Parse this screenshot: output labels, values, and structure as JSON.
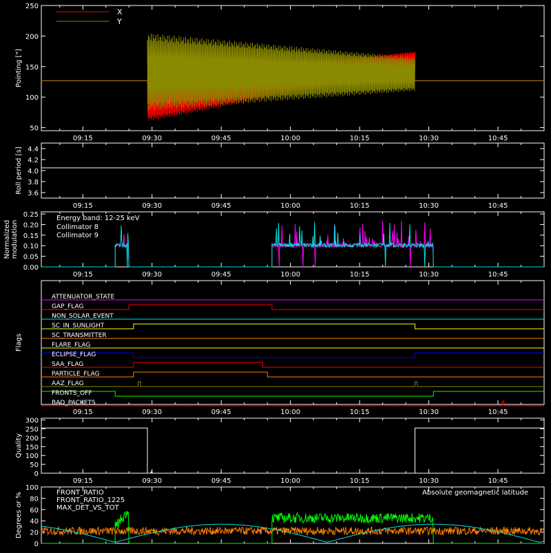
{
  "colors": {
    "background": "#000000",
    "axes": "#ffffff",
    "pointing_x": "#ff0000",
    "pointing_y": "#8a8a00",
    "collimator_8": "#00e5e5",
    "collimator_9": "#ff00ff",
    "front_ratio": "#ffff00",
    "front_ratio_1225": "#00ff00",
    "max_det_vs_tot": "#ff8000",
    "geomag": "#00e5e5"
  },
  "time_ticks": [
    "09:15",
    "09:30",
    "09:45",
    "10:00",
    "10:15",
    "10:30",
    "10:45"
  ],
  "chart_data": [
    {
      "type": "line",
      "id": "pointing",
      "ylabel": "Pointing [\"]",
      "ylim": [
        45,
        250
      ],
      "yticks": [
        "50",
        "100",
        "150",
        "200",
        "250"
      ],
      "series": [
        {
          "name": "X",
          "color": "#ff0000",
          "segments": [
            {
              "t": [
                "09:06",
                "09:29"
              ],
              "level": 127
            },
            {
              "t": [
                "09:29",
                "10:27"
              ],
              "envelope_low": [
                60,
                145
              ],
              "envelope_high": [
                135,
                175
              ]
            },
            {
              "t": [
                "10:27",
                "10:55"
              ],
              "level": 127
            }
          ]
        },
        {
          "name": "Y",
          "color": "#8a8a00",
          "segments": [
            {
              "t": [
                "09:06",
                "09:29"
              ],
              "level": 127
            },
            {
              "t": [
                "09:29",
                "10:27"
              ],
              "envelope_low": [
                78,
                110
              ],
              "envelope_high": [
                205,
                165
              ]
            },
            {
              "t": [
                "10:27",
                "10:55"
              ],
              "level": 127
            }
          ]
        }
      ]
    },
    {
      "type": "line",
      "id": "roll",
      "ylabel": "Roll period [s]",
      "ylim": [
        3.5,
        4.5
      ],
      "yticks": [
        "3.6",
        "3.8",
        "4.0",
        "4.2",
        "4.4"
      ],
      "series": [
        {
          "name": "",
          "color": "#ffffff",
          "level": 4.05
        }
      ]
    },
    {
      "type": "line",
      "id": "modulation",
      "ylabel": "Normalized modulation",
      "ylim": [
        0,
        0.26
      ],
      "yticks": [
        "0.00",
        "0.05",
        "0.10",
        "0.15",
        "0.20",
        "0.25"
      ],
      "annotation": "Energy band: 12-25 keV",
      "series": [
        {
          "name": "Collimator 8",
          "color": "#00e5e5",
          "active": [
            [
              "09:22",
              "09:25"
            ],
            [
              "09:56",
              "10:31"
            ]
          ],
          "baseline": 0.1
        },
        {
          "name": "Collimator 9",
          "color": "#ff00ff",
          "active": [
            [
              "09:22",
              "09:25"
            ],
            [
              "09:56",
              "10:31"
            ]
          ],
          "baseline": 0.1
        }
      ]
    },
    {
      "type": "line",
      "id": "flags",
      "ylabel": "Flags",
      "series": [
        {
          "name": "ATTENUATOR_STATE",
          "color": "#ff00ff",
          "transitions": [
            [
              "09:06",
              0
            ]
          ]
        },
        {
          "name": "GAP_FLAG",
          "color": "#ff0000",
          "transitions": [
            [
              "09:06",
              0
            ],
            [
              "09:25",
              1
            ],
            [
              "09:56",
              0
            ]
          ]
        },
        {
          "name": "NON_SOLAR_EVENT",
          "color": "#00e5e5",
          "transitions": [
            [
              "09:06",
              0
            ]
          ]
        },
        {
          "name": "SC_IN_SUNLIGHT",
          "color": "#ffff00",
          "transitions": [
            [
              "09:06",
              0
            ],
            [
              "09:26",
              1
            ],
            [
              "10:27",
              0
            ]
          ]
        },
        {
          "name": "SC_TRANSMITTER",
          "color": "#ff8000",
          "transitions": [
            [
              "09:06",
              0
            ]
          ]
        },
        {
          "name": "FLARE_FLAG",
          "color": "#ffff00",
          "transitions": [
            [
              "09:06",
              0
            ]
          ]
        },
        {
          "name": "ECLIPSE_FLAG",
          "color": "#0000ff",
          "transitions": [
            [
              "09:06",
              1
            ],
            [
              "09:26",
              0
            ],
            [
              "10:27",
              1
            ]
          ]
        },
        {
          "name": "SAA_FLAG",
          "color": "#ff0000",
          "transitions": [
            [
              "09:06",
              0
            ],
            [
              "09:26",
              1
            ],
            [
              "09:54",
              0
            ]
          ]
        },
        {
          "name": "PARTICLE_FLAG",
          "color": "#ff8000",
          "transitions": [
            [
              "09:06",
              0
            ],
            [
              "09:26",
              1
            ],
            [
              "09:55",
              0
            ]
          ]
        },
        {
          "name": "AAZ_FLAG",
          "color": "#8a8a00",
          "transitions": [
            [
              "09:06",
              0
            ],
            [
              "09:27",
              1
            ],
            [
              "09:27.5",
              0
            ],
            [
              "10:27",
              1
            ],
            [
              "10:27.5",
              0
            ]
          ]
        },
        {
          "name": "FRONTS_OFF",
          "color": "#00ff00",
          "transitions": [
            [
              "09:06",
              1
            ],
            [
              "09:22",
              0
            ],
            [
              "10:31",
              1
            ]
          ]
        },
        {
          "name": "BAD_PACKETS",
          "color": "#ff0000",
          "transitions": [
            [
              "09:06",
              0
            ],
            [
              "10:46",
              1
            ],
            [
              "10:46.3",
              0
            ]
          ]
        }
      ]
    },
    {
      "type": "line",
      "id": "quality",
      "ylabel": "Quality",
      "ylim": [
        0,
        310
      ],
      "yticks": [
        "0",
        "50",
        "100",
        "150",
        "200",
        "250",
        "300"
      ],
      "series": [
        {
          "name": "",
          "color": "#ffffff",
          "transitions": [
            [
              "09:06",
              255
            ],
            [
              "09:29",
              0
            ],
            [
              "10:27",
              255
            ]
          ]
        }
      ]
    },
    {
      "type": "line",
      "id": "ratios",
      "ylabel": "Degrees or %",
      "ylim": [
        0,
        100
      ],
      "yticks": [
        "0",
        "20",
        "40",
        "60",
        "80",
        "100"
      ],
      "series": [
        {
          "name": "FRONT_RATIO",
          "color": "#ffff00"
        },
        {
          "name": "FRONT_RATIO_1225",
          "color": "#00ff00",
          "active": [
            [
              "09:22",
              "09:25"
            ],
            [
              "09:56",
              "10:31"
            ]
          ],
          "level": 45
        },
        {
          "name": "MAX_DET_VS_TOT",
          "color": "#ff8000",
          "level": 22
        },
        {
          "name": "Absolute geomagnetic latitude",
          "color": "#00e5e5"
        }
      ]
    }
  ]
}
